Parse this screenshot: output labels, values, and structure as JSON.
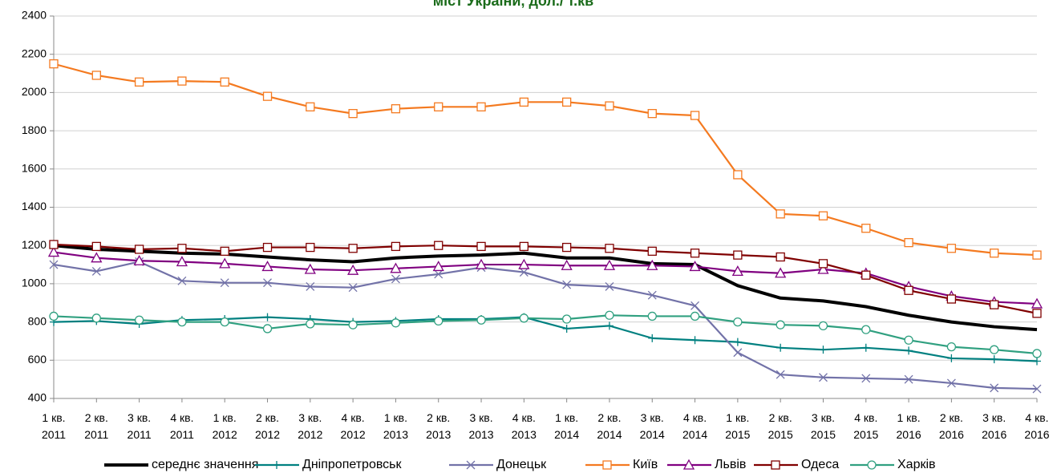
{
  "chart_data": {
    "type": "line",
    "title": "міст України, дол./ т.кв",
    "categories": [
      "1 кв. 2011",
      "2 кв. 2011",
      "3 кв. 2011",
      "4 кв. 2011",
      "1 кв. 2012",
      "2 кв. 2012",
      "3 кв. 2012",
      "4 кв. 2012",
      "1 кв. 2013",
      "2 кв. 2013",
      "3 кв. 2013",
      "4 кв. 2013",
      "1 кв. 2014",
      "2 кв. 2014",
      "3 кв. 2014",
      "4 кв. 2014",
      "1 кв. 2015",
      "2 кв. 2015",
      "3 кв. 2015",
      "4 кв. 2015",
      "1 кв. 2016",
      "2 кв. 2016",
      "3 кв. 2016",
      "4 кв. 2016"
    ],
    "ylim": [
      400,
      2400
    ],
    "yticks": [
      400,
      600,
      800,
      1000,
      1200,
      1400,
      1600,
      1800,
      2000,
      2200,
      2400
    ],
    "grid": true,
    "legend": "bottom",
    "series": [
      {
        "name": "середнє значення",
        "color": "#000000",
        "marker": "none",
        "values": [
          1200,
          1180,
          1170,
          1160,
          1155,
          1140,
          1125,
          1115,
          1135,
          1145,
          1150,
          1160,
          1135,
          1135,
          1105,
          1100,
          990,
          925,
          910,
          880,
          835,
          800,
          775,
          760
        ]
      },
      {
        "name": "Дніпропетровськ",
        "color": "#008080",
        "marker": "plus",
        "values": [
          800,
          805,
          790,
          810,
          815,
          825,
          815,
          800,
          805,
          815,
          815,
          825,
          765,
          780,
          715,
          705,
          695,
          665,
          655,
          665,
          650,
          610,
          605,
          595
        ]
      },
      {
        "name": "Донецьк",
        "color": "#7272a8",
        "marker": "x",
        "values": [
          1100,
          1065,
          1115,
          1015,
          1005,
          1005,
          985,
          980,
          1025,
          1050,
          1085,
          1060,
          995,
          985,
          940,
          885,
          640,
          525,
          510,
          505,
          500,
          480,
          455,
          450
        ]
      },
      {
        "name": "Київ",
        "color": "#f47a20",
        "marker": "square",
        "values": [
          2150,
          2090,
          2055,
          2060,
          2055,
          1980,
          1925,
          1890,
          1915,
          1925,
          1925,
          1950,
          1950,
          1930,
          1890,
          1880,
          1570,
          1365,
          1355,
          1290,
          1215,
          1185,
          1160,
          1150
        ]
      },
      {
        "name": "Львів",
        "color": "#800080",
        "marker": "triangle",
        "values": [
          1165,
          1135,
          1120,
          1115,
          1105,
          1090,
          1075,
          1070,
          1080,
          1090,
          1100,
          1100,
          1095,
          1095,
          1095,
          1090,
          1065,
          1055,
          1075,
          1055,
          985,
          935,
          905,
          895
        ]
      },
      {
        "name": "Одеса",
        "color": "#800000",
        "marker": "square",
        "values": [
          1205,
          1195,
          1180,
          1185,
          1170,
          1190,
          1190,
          1185,
          1195,
          1200,
          1195,
          1195,
          1190,
          1185,
          1170,
          1160,
          1150,
          1140,
          1105,
          1045,
          965,
          920,
          890,
          845
        ]
      },
      {
        "name": "Харків",
        "color": "#30a080",
        "marker": "circle",
        "values": [
          830,
          820,
          810,
          800,
          800,
          765,
          790,
          785,
          795,
          805,
          810,
          820,
          815,
          835,
          830,
          830,
          800,
          785,
          780,
          760,
          705,
          670,
          655,
          635
        ]
      }
    ]
  }
}
